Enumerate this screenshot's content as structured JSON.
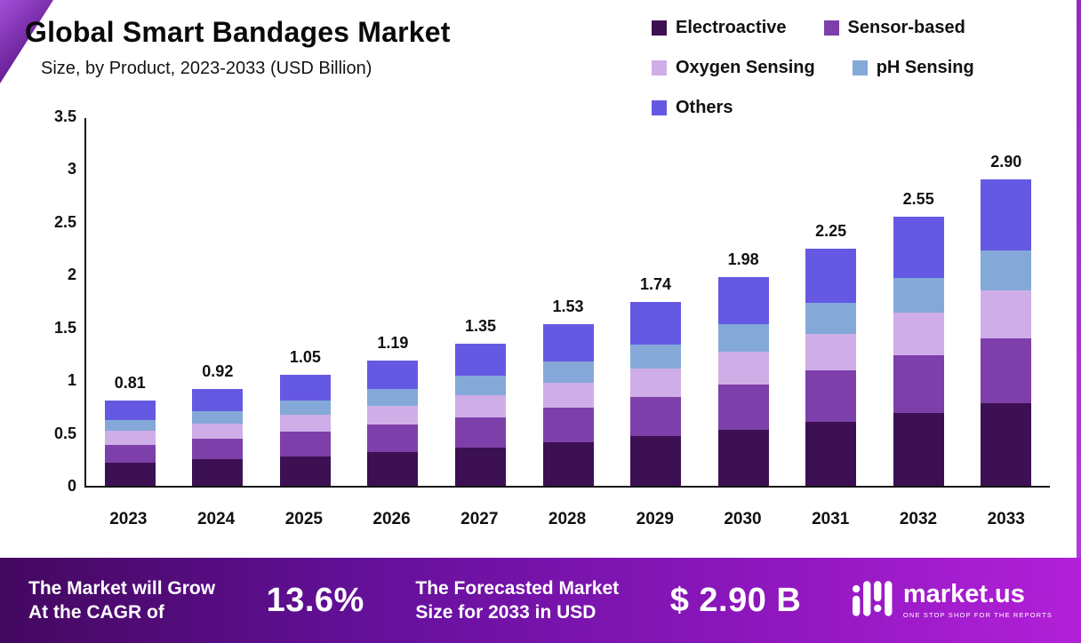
{
  "title": "Global Smart Bandages Market",
  "subtitle": "Size, by Product, 2023-2033 (USD Billion)",
  "colors": {
    "electroactive": "#3c1053",
    "sensor_based": "#7d3fa9",
    "oxygen_sensing": "#cfaee8",
    "ph_sensing": "#84a9d8",
    "others": "#6559e3"
  },
  "legend": [
    {
      "label": "Electroactive",
      "color_key": "electroactive"
    },
    {
      "label": "Sensor-based",
      "color_key": "sensor_based"
    },
    {
      "label": "Oxygen Sensing",
      "color_key": "oxygen_sensing"
    },
    {
      "label": "pH Sensing",
      "color_key": "ph_sensing"
    },
    {
      "label": "Others",
      "color_key": "others"
    }
  ],
  "chart_data": {
    "type": "bar",
    "stacked": true,
    "title": "Global Smart Bandages Market Size, by Product, 2023-2033 (USD Billion)",
    "categories": [
      "2023",
      "2024",
      "2025",
      "2026",
      "2027",
      "2028",
      "2029",
      "2030",
      "2031",
      "2032",
      "2033"
    ],
    "totals": [
      "0.81",
      "0.92",
      "1.05",
      "1.19",
      "1.35",
      "1.53",
      "1.74",
      "1.98",
      "2.25",
      "2.55",
      "2.90"
    ],
    "series": [
      {
        "name": "Electroactive",
        "color_key": "electroactive",
        "values": [
          0.22,
          0.25,
          0.28,
          0.32,
          0.36,
          0.41,
          0.47,
          0.53,
          0.61,
          0.69,
          0.78
        ]
      },
      {
        "name": "Sensor-based",
        "color_key": "sensor_based",
        "values": [
          0.17,
          0.2,
          0.23,
          0.26,
          0.29,
          0.33,
          0.37,
          0.43,
          0.48,
          0.55,
          0.62
        ]
      },
      {
        "name": "Oxygen Sensing",
        "color_key": "oxygen_sensing",
        "values": [
          0.13,
          0.14,
          0.16,
          0.18,
          0.21,
          0.24,
          0.27,
          0.31,
          0.35,
          0.4,
          0.45
        ]
      },
      {
        "name": "pH Sensing",
        "color_key": "ph_sensing",
        "values": [
          0.1,
          0.12,
          0.14,
          0.16,
          0.18,
          0.2,
          0.23,
          0.26,
          0.29,
          0.33,
          0.38
        ]
      },
      {
        "name": "Others",
        "color_key": "others",
        "values": [
          0.19,
          0.21,
          0.24,
          0.27,
          0.31,
          0.35,
          0.4,
          0.45,
          0.52,
          0.58,
          0.67
        ]
      }
    ],
    "xlabel": "",
    "ylabel": "",
    "ylim": [
      0,
      3.5
    ],
    "yticks": [
      "3.5",
      "3",
      "2.5",
      "2",
      "1.5",
      "1",
      "0.5",
      "0"
    ],
    "grid": false,
    "legend_position": "top-right"
  },
  "footer": {
    "cagr_text_line1": "The Market will Grow",
    "cagr_text_line2": "At the CAGR of",
    "cagr_value": "13.6%",
    "forecast_text_line1": "The Forecasted Market",
    "forecast_text_line2": "Size for 2033 in USD",
    "forecast_value": "$ 2.90 B",
    "brand": "market.us",
    "brand_tagline": "ONE STOP SHOP FOR THE REPORTS"
  }
}
